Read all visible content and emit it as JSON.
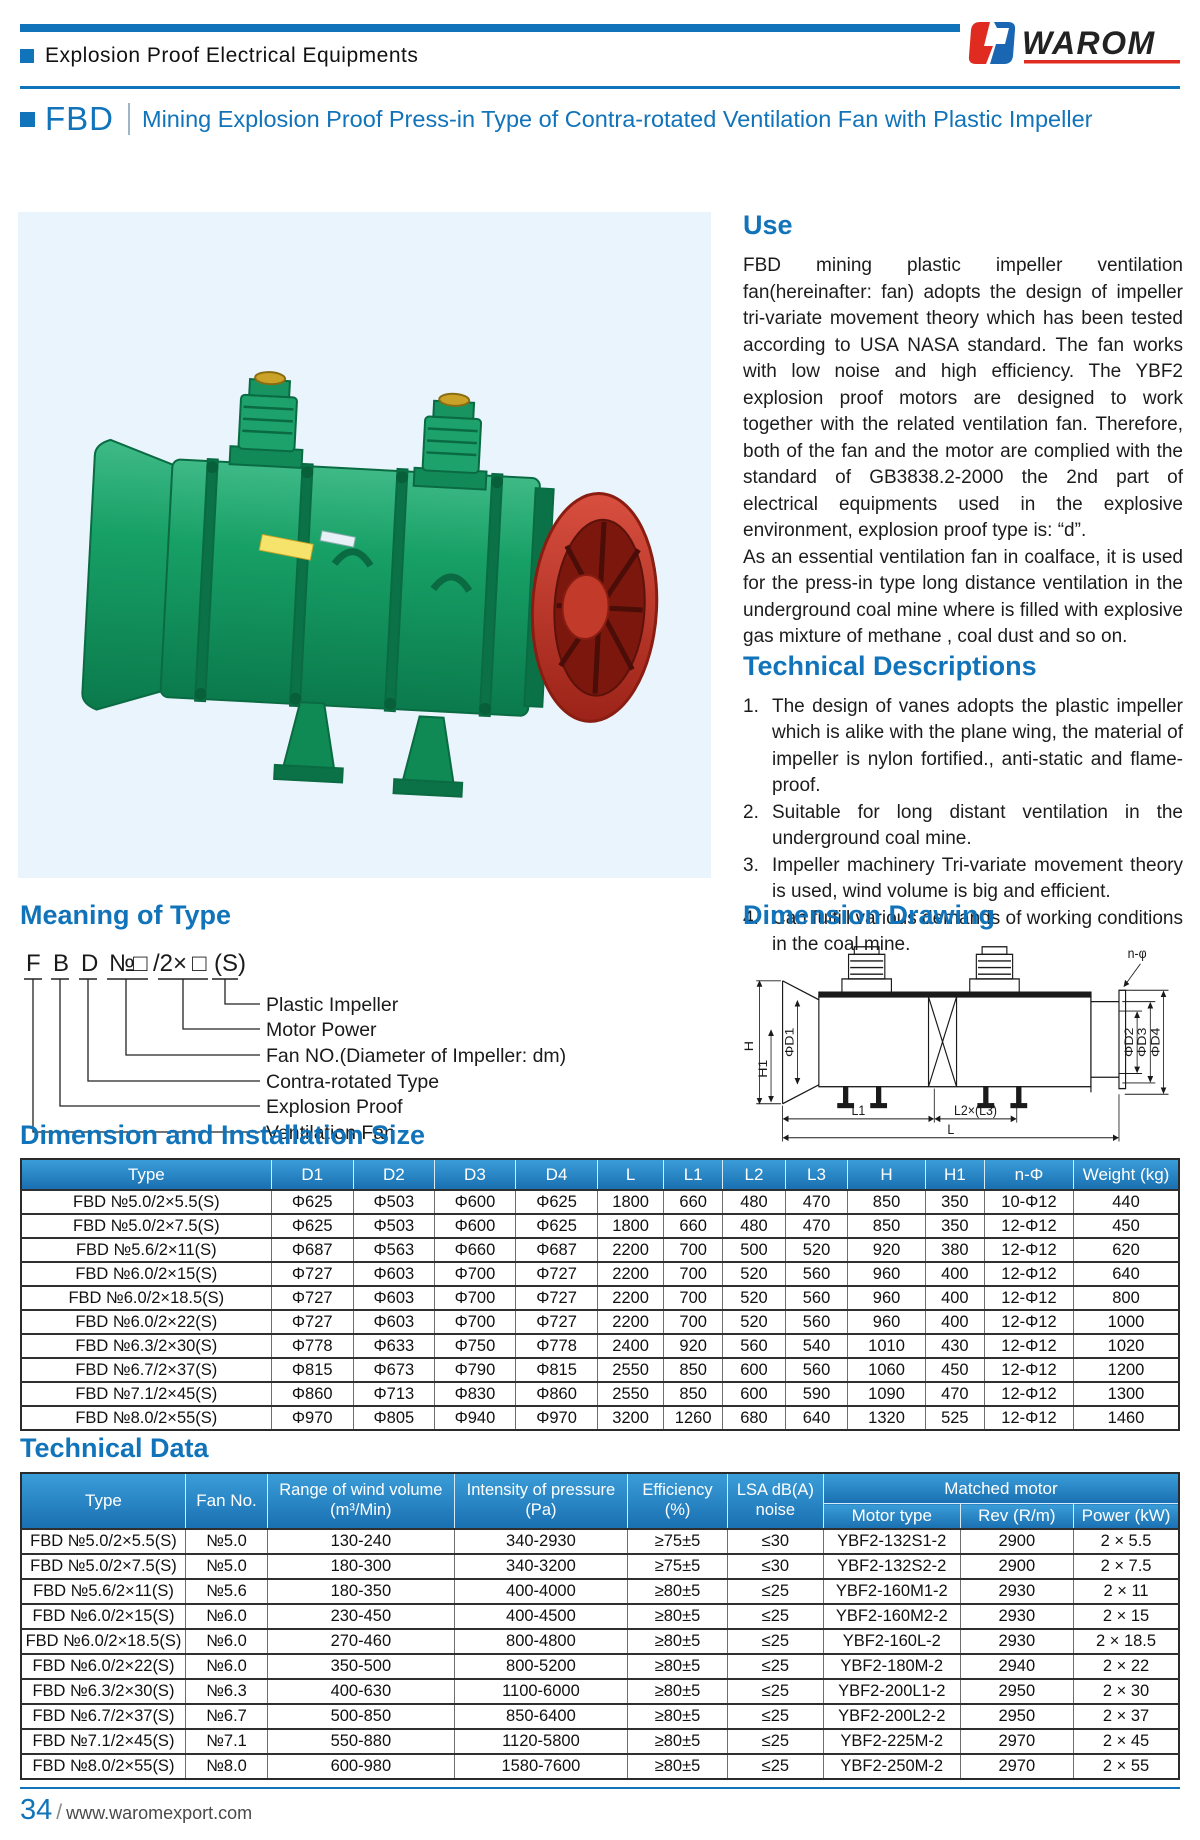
{
  "header": {
    "tagline": "Explosion Proof Electrical Equipments",
    "brand": "WAROM",
    "product_code": "FBD",
    "product_title": "Mining Explosion Proof Press-in Type of Contra-rotated Ventilation Fan with Plastic Impeller"
  },
  "use_section": {
    "title": "Use",
    "paragraph1": "FBD mining plastic impeller ventilation fan(hereinafter: fan) adopts the design of impeller tri-variate movement theory which has been tested according to USA NASA standard. The fan works with low noise and high efficiency. The YBF2 explosion proof motors are designed to work together with the related ventilation fan. Therefore, both of the fan and the motor are complied with the standard of GB3838.2-2000 the 2nd part of electrical equipments used in the explosive environment, explosion proof type is: “d”.",
    "paragraph2": "As an essential ventilation fan in coalface, it is used for the press-in type long distance ventilation in the underground coal mine where is filled with explosive gas mixture of methane , coal dust and so on."
  },
  "technical_descriptions": {
    "title": "Technical Descriptions",
    "items": [
      "The design of vanes adopts the plastic impeller which is alike with the plane wing, the material of impeller is nylon fortified., anti-static and flame-proof.",
      "Suitable for long distant ventilation in the underground coal mine.",
      "Impeller machinery Tri-variate movement theory is used, wind volume is big and efficient.",
      "Can fulfill various demands of working conditions in the coal mine."
    ]
  },
  "meaning_of_type": {
    "title": "Meaning of Type",
    "code_parts": [
      "F",
      "B",
      "D",
      "№",
      "□",
      "/2×",
      "□",
      "(S)"
    ],
    "labels": [
      "Plastic Impeller",
      "Motor Power",
      "Fan NO.(Diameter of Impeller: dm)",
      "Contra-rotated Type",
      "Explosion Proof",
      "Ventilation Fan"
    ]
  },
  "dimension_drawing": {
    "title": "Dimension Drawing",
    "labels": {
      "h": "H",
      "h1": "H1",
      "d1": "ΦD1",
      "d2": "ΦD2",
      "d3": "ΦD3",
      "d4": "ΦD4",
      "l1": "L1",
      "l2": "L2×(L3)",
      "l": "L",
      "n": "n-φ"
    }
  },
  "dimension_table": {
    "title": "Dimension and Installation Size",
    "headers": [
      "Type",
      "D1",
      "D2",
      "D3",
      "D4",
      "L",
      "L1",
      "L2",
      "L3",
      "H",
      "H1",
      "n-Φ",
      "Weight (kg)"
    ],
    "rows": [
      [
        "FBD №5.0/2×5.5(S)",
        "Φ625",
        "Φ503",
        "Φ600",
        "Φ625",
        "1800",
        "660",
        "480",
        "470",
        "850",
        "350",
        "10-Φ12",
        "440"
      ],
      [
        "FBD №5.0/2×7.5(S)",
        "Φ625",
        "Φ503",
        "Φ600",
        "Φ625",
        "1800",
        "660",
        "480",
        "470",
        "850",
        "350",
        "12-Φ12",
        "450"
      ],
      [
        "FBD №5.6/2×11(S)",
        "Φ687",
        "Φ563",
        "Φ660",
        "Φ687",
        "2200",
        "700",
        "500",
        "520",
        "920",
        "380",
        "12-Φ12",
        "620"
      ],
      [
        "FBD №6.0/2×15(S)",
        "Φ727",
        "Φ603",
        "Φ700",
        "Φ727",
        "2200",
        "700",
        "520",
        "560",
        "960",
        "400",
        "12-Φ12",
        "640"
      ],
      [
        "FBD №6.0/2×18.5(S)",
        "Φ727",
        "Φ603",
        "Φ700",
        "Φ727",
        "2200",
        "700",
        "520",
        "560",
        "960",
        "400",
        "12-Φ12",
        "800"
      ],
      [
        "FBD №6.0/2×22(S)",
        "Φ727",
        "Φ603",
        "Φ700",
        "Φ727",
        "2200",
        "700",
        "520",
        "560",
        "960",
        "400",
        "12-Φ12",
        "1000"
      ],
      [
        "FBD №6.3/2×30(S)",
        "Φ778",
        "Φ633",
        "Φ750",
        "Φ778",
        "2400",
        "920",
        "560",
        "540",
        "1010",
        "430",
        "12-Φ12",
        "1020"
      ],
      [
        "FBD №6.7/2×37(S)",
        "Φ815",
        "Φ673",
        "Φ790",
        "Φ815",
        "2550",
        "850",
        "600",
        "560",
        "1060",
        "450",
        "12-Φ12",
        "1200"
      ],
      [
        "FBD №7.1/2×45(S)",
        "Φ860",
        "Φ713",
        "Φ830",
        "Φ860",
        "2550",
        "850",
        "600",
        "590",
        "1090",
        "470",
        "12-Φ12",
        "1300"
      ],
      [
        "FBD №8.0/2×55(S)",
        "Φ970",
        "Φ805",
        "Φ940",
        "Φ970",
        "3200",
        "1260",
        "680",
        "640",
        "1320",
        "525",
        "12-Φ12",
        "1460"
      ]
    ]
  },
  "technical_data": {
    "title": "Technical Data",
    "headers": {
      "type": "Type",
      "fan_no": "Fan No.",
      "wind_volume": "Range of wind volume",
      "wind_volume_unit": "(m³/Min)",
      "pressure": "Intensity of pressure",
      "pressure_unit": "(Pa)",
      "efficiency": "Efficiency",
      "efficiency_unit": "(%)",
      "noise_line1": "LSA dB(A)",
      "noise_line2": "noise",
      "matched_motor": "Matched motor",
      "motor_type": "Motor type",
      "rev": "Rev (R/m)",
      "power": "Power (kW)"
    },
    "rows": [
      [
        "FBD №5.0/2×5.5(S)",
        "№5.0",
        "130-240",
        "340-2930",
        "≥75±5",
        "≤30",
        "YBF2-132S1-2",
        "2900",
        "2 × 5.5"
      ],
      [
        "FBD №5.0/2×7.5(S)",
        "№5.0",
        "180-300",
        "340-3200",
        "≥75±5",
        "≤30",
        "YBF2-132S2-2",
        "2900",
        "2 × 7.5"
      ],
      [
        "FBD №5.6/2×11(S)",
        "№5.6",
        "180-350",
        "400-4000",
        "≥80±5",
        "≤25",
        "YBF2-160M1-2",
        "2930",
        "2 × 11"
      ],
      [
        "FBD №6.0/2×15(S)",
        "№6.0",
        "230-450",
        "400-4500",
        "≥80±5",
        "≤25",
        "YBF2-160M2-2",
        "2930",
        "2 × 15"
      ],
      [
        "FBD №6.0/2×18.5(S)",
        "№6.0",
        "270-460",
        "800-4800",
        "≥80±5",
        "≤25",
        "YBF2-160L-2",
        "2930",
        "2 × 18.5"
      ],
      [
        "FBD №6.0/2×22(S)",
        "№6.0",
        "350-500",
        "800-5200",
        "≥80±5",
        "≤25",
        "YBF2-180M-2",
        "2940",
        "2 × 22"
      ],
      [
        "FBD №6.3/2×30(S)",
        "№6.3",
        "400-630",
        "1100-6000",
        "≥80±5",
        "≤25",
        "YBF2-200L1-2",
        "2950",
        "2 × 30"
      ],
      [
        "FBD №6.7/2×37(S)",
        "№6.7",
        "500-850",
        "850-6400",
        "≥80±5",
        "≤25",
        "YBF2-200L2-2",
        "2950",
        "2 × 37"
      ],
      [
        "FBD №7.1/2×45(S)",
        "№7.1",
        "550-880",
        "1120-5800",
        "≥80±5",
        "≤25",
        "YBF2-225M-2",
        "2970",
        "2 × 45"
      ],
      [
        "FBD №8.0/2×55(S)",
        "№8.0",
        "600-980",
        "1580-7600",
        "≥80±5",
        "≤25",
        "YBF2-250M-2",
        "2970",
        "2 × 55"
      ]
    ]
  },
  "footer": {
    "page_number": "34",
    "separator": "/",
    "website": "www.waromexport.com"
  }
}
